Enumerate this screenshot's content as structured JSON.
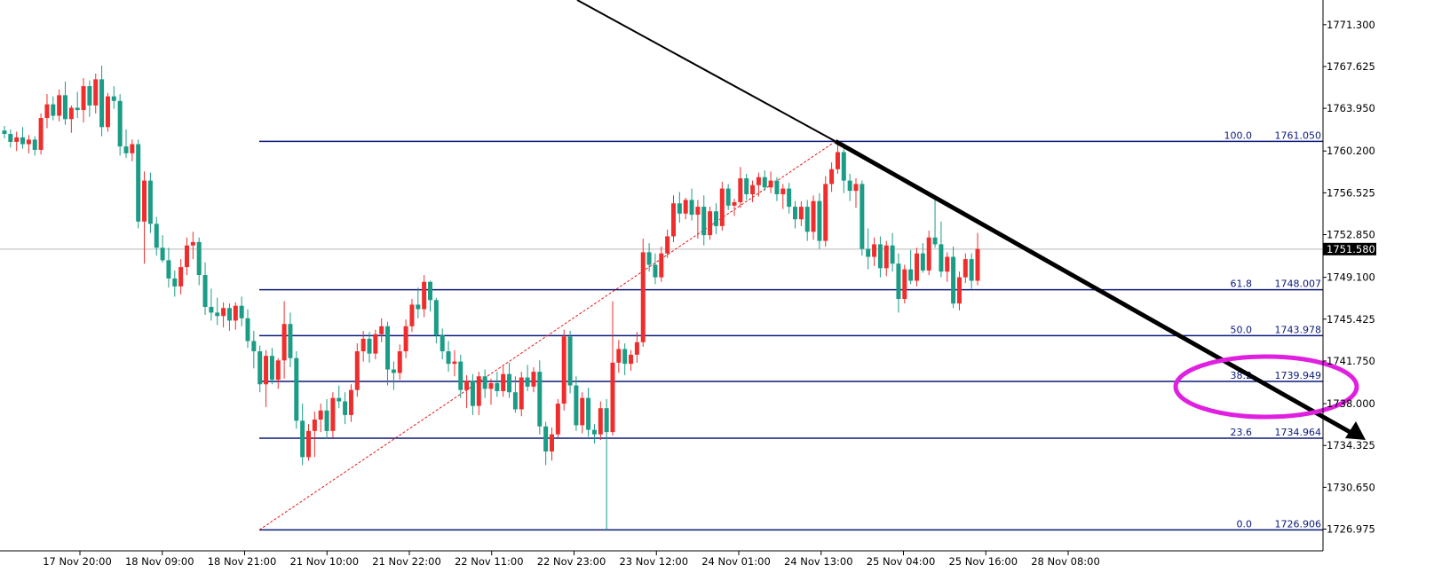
{
  "chart_data": {
    "type": "candlestick",
    "colors": {
      "bull": "#ef2d2d",
      "bear": "#1a9c86",
      "fib_line": "#0b1a7a",
      "trend": "#000000",
      "diag": "#e31a1c",
      "highlight": "#e020e0",
      "price_tag_bg": "#000000",
      "price_tag_text": "#ffffff",
      "current_line": "#b8b8b8",
      "axis": "#000000"
    },
    "y_axis": {
      "range": [
        1725.3,
        1773.0
      ],
      "ticks": [
        "1771.300",
        "1767.625",
        "1763.950",
        "1760.200",
        "1756.525",
        "1752.850",
        "1749.100",
        "1745.425",
        "1741.750",
        "1738.000",
        "1734.325",
        "1730.650",
        "1726.975"
      ]
    },
    "x_axis": {
      "labels": [
        "17 Nov 20:00",
        "18 Nov 09:00",
        "18 Nov 21:00",
        "21 Nov 10:00",
        "21 Nov 22:00",
        "22 Nov 11:00",
        "22 Nov 23:00",
        "23 Nov 12:00",
        "24 Nov 01:00",
        "24 Nov 13:00",
        "25 Nov 04:00",
        "25 Nov 16:00",
        "28 Nov 08:00"
      ]
    },
    "current_price": "1751.580",
    "fibonacci": [
      {
        "level": "100.0",
        "price": "1761.050",
        "value": 1761.05
      },
      {
        "level": "61.8",
        "price": "1748.007",
        "value": 1748.007
      },
      {
        "level": "50.0",
        "price": "1743.978",
        "value": 1743.978
      },
      {
        "level": "38.2",
        "price": "1739.949",
        "value": 1739.949
      },
      {
        "level": "23.6",
        "price": "1734.964",
        "value": 1734.964
      },
      {
        "level": "0.0",
        "price": "1726.906",
        "value": 1726.906
      }
    ],
    "candles": [
      [
        1762.0,
        1762.4,
        1761.3,
        1761.7
      ],
      [
        1761.7,
        1762.1,
        1760.5,
        1761.0
      ],
      [
        1761.0,
        1761.9,
        1760.2,
        1761.4
      ],
      [
        1761.4,
        1762.3,
        1760.4,
        1760.8
      ],
      [
        1760.8,
        1761.6,
        1760.0,
        1761.2
      ],
      [
        1761.2,
        1761.5,
        1759.8,
        1760.3
      ],
      [
        1760.3,
        1763.5,
        1759.9,
        1763.1
      ],
      [
        1763.1,
        1765.2,
        1762.2,
        1764.3
      ],
      [
        1764.3,
        1765.0,
        1762.9,
        1763.3
      ],
      [
        1763.3,
        1765.6,
        1762.8,
        1765.1
      ],
      [
        1765.1,
        1766.3,
        1762.5,
        1763.0
      ],
      [
        1763.0,
        1764.2,
        1761.8,
        1764.0
      ],
      [
        1764.0,
        1765.4,
        1763.1,
        1763.8
      ],
      [
        1763.8,
        1766.6,
        1762.7,
        1765.9
      ],
      [
        1765.9,
        1766.4,
        1763.2,
        1764.2
      ],
      [
        1764.2,
        1767.0,
        1763.5,
        1766.5
      ],
      [
        1766.5,
        1767.7,
        1761.5,
        1762.3
      ],
      [
        1762.3,
        1765.3,
        1761.9,
        1765.0
      ],
      [
        1765.0,
        1765.9,
        1763.9,
        1764.6
      ],
      [
        1764.6,
        1765.2,
        1759.8,
        1760.6
      ],
      [
        1760.6,
        1762.1,
        1759.6,
        1760.0
      ],
      [
        1760.0,
        1761.2,
        1759.3,
        1760.8
      ],
      [
        1760.8,
        1761.2,
        1753.4,
        1754.0
      ],
      [
        1754.0,
        1758.4,
        1750.3,
        1757.6
      ],
      [
        1757.6,
        1758.3,
        1753.0,
        1753.8
      ],
      [
        1753.8,
        1754.4,
        1751.0,
        1751.7
      ],
      [
        1751.7,
        1752.8,
        1750.4,
        1750.6
      ],
      [
        1750.6,
        1751.7,
        1748.2,
        1749.0
      ],
      [
        1749.0,
        1749.7,
        1747.4,
        1748.3
      ],
      [
        1748.3,
        1750.7,
        1747.6,
        1750.0
      ],
      [
        1750.0,
        1752.6,
        1749.3,
        1751.9
      ],
      [
        1751.9,
        1753.1,
        1750.7,
        1752.2
      ],
      [
        1752.2,
        1752.6,
        1748.4,
        1749.3
      ],
      [
        1749.3,
        1750.4,
        1745.8,
        1746.5
      ],
      [
        1746.5,
        1748.1,
        1745.3,
        1746.0
      ],
      [
        1746.0,
        1747.3,
        1744.9,
        1745.7
      ],
      [
        1745.7,
        1746.9,
        1744.7,
        1746.4
      ],
      [
        1746.4,
        1746.8,
        1744.4,
        1745.3
      ],
      [
        1745.3,
        1746.9,
        1744.5,
        1746.6
      ],
      [
        1746.6,
        1747.4,
        1744.8,
        1745.5
      ],
      [
        1745.5,
        1746.3,
        1742.9,
        1743.5
      ],
      [
        1743.5,
        1744.4,
        1741.1,
        1742.6
      ],
      [
        1742.6,
        1743.1,
        1739.0,
        1739.7
      ],
      [
        1739.7,
        1742.7,
        1737.7,
        1742.2
      ],
      [
        1742.2,
        1742.9,
        1739.7,
        1740.1
      ],
      [
        1740.1,
        1742.0,
        1739.3,
        1741.8
      ],
      [
        1741.8,
        1747.0,
        1740.2,
        1745.0
      ],
      [
        1745.0,
        1746.0,
        1741.2,
        1742.0
      ],
      [
        1742.0,
        1742.6,
        1735.8,
        1736.5
      ],
      [
        1736.5,
        1738.0,
        1732.6,
        1733.3
      ],
      [
        1733.3,
        1736.2,
        1733.0,
        1735.6
      ],
      [
        1735.6,
        1737.3,
        1733.3,
        1736.6
      ],
      [
        1736.6,
        1738.0,
        1735.5,
        1737.4
      ],
      [
        1737.4,
        1738.4,
        1734.9,
        1735.6
      ],
      [
        1735.6,
        1739.0,
        1735.0,
        1738.5
      ],
      [
        1738.5,
        1739.6,
        1737.6,
        1738.2
      ],
      [
        1738.2,
        1739.0,
        1736.2,
        1737.0
      ],
      [
        1737.0,
        1739.7,
        1736.4,
        1739.2
      ],
      [
        1739.2,
        1743.3,
        1738.6,
        1742.6
      ],
      [
        1742.6,
        1744.4,
        1741.7,
        1743.7
      ],
      [
        1743.7,
        1744.3,
        1741.6,
        1742.4
      ],
      [
        1742.4,
        1744.5,
        1741.9,
        1744.1
      ],
      [
        1744.1,
        1745.5,
        1743.4,
        1744.8
      ],
      [
        1744.8,
        1745.2,
        1739.6,
        1741.0
      ],
      [
        1741.0,
        1741.7,
        1739.2,
        1740.7
      ],
      [
        1740.7,
        1743.2,
        1740.1,
        1742.6
      ],
      [
        1742.6,
        1745.4,
        1742.0,
        1744.8
      ],
      [
        1744.8,
        1747.2,
        1744.3,
        1746.7
      ],
      [
        1746.7,
        1748.2,
        1745.5,
        1746.3
      ],
      [
        1746.3,
        1749.3,
        1745.6,
        1748.7
      ],
      [
        1748.7,
        1748.8,
        1746.1,
        1747.1
      ],
      [
        1747.1,
        1747.3,
        1743.3,
        1744.0
      ],
      [
        1744.0,
        1744.6,
        1741.9,
        1742.6
      ],
      [
        1742.6,
        1743.5,
        1740.8,
        1741.5
      ],
      [
        1741.5,
        1742.7,
        1740.4,
        1741.7
      ],
      [
        1741.7,
        1742.3,
        1738.5,
        1739.2
      ],
      [
        1739.2,
        1740.5,
        1737.6,
        1740.0
      ],
      [
        1740.0,
        1740.6,
        1737.0,
        1737.8
      ],
      [
        1737.8,
        1740.8,
        1737.0,
        1740.4
      ],
      [
        1740.4,
        1741.0,
        1738.5,
        1739.3
      ],
      [
        1739.3,
        1740.2,
        1737.9,
        1739.8
      ],
      [
        1739.8,
        1740.8,
        1738.6,
        1739.1
      ],
      [
        1739.1,
        1741.3,
        1738.6,
        1740.6
      ],
      [
        1740.6,
        1741.6,
        1738.5,
        1739.0
      ],
      [
        1739.0,
        1740.4,
        1737.2,
        1737.5
      ],
      [
        1737.5,
        1740.8,
        1736.9,
        1740.3
      ],
      [
        1740.3,
        1741.4,
        1739.1,
        1739.5
      ],
      [
        1739.5,
        1741.2,
        1739.0,
        1740.8
      ],
      [
        1740.8,
        1741.8,
        1735.3,
        1736.0
      ],
      [
        1736.0,
        1736.4,
        1732.6,
        1733.8
      ],
      [
        1733.8,
        1735.9,
        1733.0,
        1735.3
      ],
      [
        1735.3,
        1738.4,
        1735.0,
        1738.0
      ],
      [
        1738.0,
        1744.5,
        1737.4,
        1743.9
      ],
      [
        1743.9,
        1744.4,
        1738.9,
        1739.6
      ],
      [
        1739.6,
        1740.4,
        1735.6,
        1736.1
      ],
      [
        1736.1,
        1739.0,
        1735.4,
        1738.5
      ],
      [
        1738.5,
        1739.4,
        1735.1,
        1735.7
      ],
      [
        1735.7,
        1736.2,
        1734.5,
        1735.3
      ],
      [
        1735.3,
        1738.2,
        1734.8,
        1737.6
      ],
      [
        1737.6,
        1738.4,
        1726.9,
        1735.5
      ],
      [
        1735.5,
        1747.0,
        1735.2,
        1741.6
      ],
      [
        1741.6,
        1743.6,
        1740.7,
        1742.8
      ],
      [
        1742.8,
        1743.3,
        1740.5,
        1741.5
      ],
      [
        1741.5,
        1742.7,
        1740.9,
        1742.3
      ],
      [
        1742.3,
        1744.3,
        1741.6,
        1743.4
      ],
      [
        1743.4,
        1752.5,
        1743.0,
        1751.3
      ],
      [
        1751.3,
        1752.1,
        1749.6,
        1750.2
      ],
      [
        1750.2,
        1751.2,
        1748.5,
        1749.1
      ],
      [
        1749.1,
        1751.8,
        1748.7,
        1751.2
      ],
      [
        1751.2,
        1753.3,
        1750.8,
        1752.7
      ],
      [
        1752.7,
        1756.3,
        1752.2,
        1755.6
      ],
      [
        1755.6,
        1756.6,
        1753.9,
        1754.7
      ],
      [
        1754.7,
        1756.1,
        1754.2,
        1755.9
      ],
      [
        1755.9,
        1756.9,
        1754.1,
        1754.6
      ],
      [
        1754.6,
        1755.9,
        1752.5,
        1755.3
      ],
      [
        1755.3,
        1756.3,
        1751.9,
        1752.8
      ],
      [
        1752.8,
        1755.3,
        1752.4,
        1754.9
      ],
      [
        1754.9,
        1755.6,
        1752.9,
        1753.6
      ],
      [
        1753.6,
        1757.5,
        1753.2,
        1756.9
      ],
      [
        1756.9,
        1757.3,
        1755.0,
        1755.4
      ],
      [
        1755.4,
        1756.0,
        1754.5,
        1755.7
      ],
      [
        1755.7,
        1758.8,
        1755.2,
        1757.8
      ],
      [
        1757.8,
        1758.2,
        1755.9,
        1756.4
      ],
      [
        1756.4,
        1757.6,
        1755.7,
        1757.2
      ],
      [
        1757.2,
        1758.3,
        1756.2,
        1757.9
      ],
      [
        1757.9,
        1758.5,
        1756.7,
        1757.0
      ],
      [
        1757.0,
        1758.4,
        1756.5,
        1757.6
      ],
      [
        1757.6,
        1757.9,
        1755.8,
        1756.4
      ],
      [
        1756.4,
        1757.3,
        1755.1,
        1756.9
      ],
      [
        1756.9,
        1757.4,
        1754.7,
        1755.3
      ],
      [
        1755.3,
        1755.8,
        1753.4,
        1754.2
      ],
      [
        1754.2,
        1755.8,
        1753.6,
        1755.3
      ],
      [
        1755.3,
        1755.9,
        1752.3,
        1753.1
      ],
      [
        1753.1,
        1756.3,
        1752.4,
        1755.8
      ],
      [
        1755.8,
        1756.5,
        1751.6,
        1752.3
      ],
      [
        1752.3,
        1758.0,
        1751.8,
        1757.3
      ],
      [
        1757.3,
        1759.2,
        1756.6,
        1758.6
      ],
      [
        1758.6,
        1761.1,
        1758.2,
        1760.1
      ],
      [
        1760.1,
        1760.5,
        1756.5,
        1757.6
      ],
      [
        1757.6,
        1758.2,
        1755.8,
        1756.7
      ],
      [
        1756.7,
        1757.8,
        1755.2,
        1757.3
      ],
      [
        1757.3,
        1757.6,
        1751.0,
        1751.6
      ],
      [
        1751.6,
        1753.4,
        1749.8,
        1750.9
      ],
      [
        1750.9,
        1752.6,
        1750.1,
        1752.0
      ],
      [
        1752.0,
        1752.7,
        1749.1,
        1749.9
      ],
      [
        1749.9,
        1752.3,
        1749.2,
        1751.9
      ],
      [
        1751.9,
        1753.0,
        1749.6,
        1750.3
      ],
      [
        1750.3,
        1751.2,
        1746.0,
        1747.2
      ],
      [
        1747.2,
        1750.2,
        1746.8,
        1749.8
      ],
      [
        1749.8,
        1751.5,
        1748.5,
        1748.8
      ],
      [
        1748.8,
        1751.7,
        1748.3,
        1751.2
      ],
      [
        1751.2,
        1752.1,
        1749.5,
        1749.7
      ],
      [
        1749.7,
        1753.2,
        1749.3,
        1752.6
      ],
      [
        1752.6,
        1756.0,
        1751.7,
        1752.0
      ],
      [
        1752.0,
        1754.0,
        1749.1,
        1749.6
      ],
      [
        1749.6,
        1751.3,
        1748.7,
        1750.9
      ],
      [
        1750.9,
        1751.8,
        1746.4,
        1746.8
      ],
      [
        1746.8,
        1749.6,
        1746.2,
        1749.1
      ],
      [
        1749.1,
        1751.2,
        1748.6,
        1750.7
      ],
      [
        1750.7,
        1751.2,
        1748.1,
        1748.8
      ],
      [
        1748.8,
        1753.0,
        1748.4,
        1751.6
      ]
    ]
  }
}
